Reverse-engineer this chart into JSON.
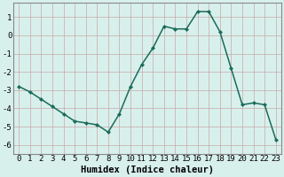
{
  "x": [
    0,
    1,
    2,
    3,
    4,
    5,
    6,
    7,
    8,
    9,
    10,
    11,
    12,
    13,
    14,
    15,
    16,
    17,
    18,
    19,
    20,
    21,
    22,
    23
  ],
  "y": [
    -2.8,
    -3.1,
    -3.5,
    -3.9,
    -4.3,
    -4.7,
    -4.8,
    -4.9,
    -5.3,
    -4.3,
    -2.8,
    -1.6,
    -0.7,
    0.5,
    0.35,
    0.35,
    1.3,
    1.3,
    0.2,
    -1.8,
    -3.8,
    -3.7,
    -3.8,
    -5.7
  ],
  "line_color": "#1a6b5a",
  "marker": "D",
  "marker_size": 2.2,
  "background_color": "#d8f0ec",
  "plot_bg_color": "#d8f0ec",
  "grid_color": "#c8a8a8",
  "xlabel": "Humidex (Indice chaleur)",
  "xlim": [
    -0.5,
    23.5
  ],
  "ylim": [
    -6.5,
    1.8
  ],
  "yticks": [
    1,
    0,
    -1,
    -2,
    -3,
    -4,
    -5,
    -6
  ],
  "xticks": [
    0,
    1,
    2,
    3,
    4,
    5,
    6,
    7,
    8,
    9,
    10,
    11,
    12,
    13,
    14,
    15,
    16,
    17,
    18,
    19,
    20,
    21,
    22,
    23
  ],
  "xlabel_fontsize": 7.5,
  "tick_fontsize": 6.5,
  "linewidth": 1.1,
  "spine_color": "#888888"
}
